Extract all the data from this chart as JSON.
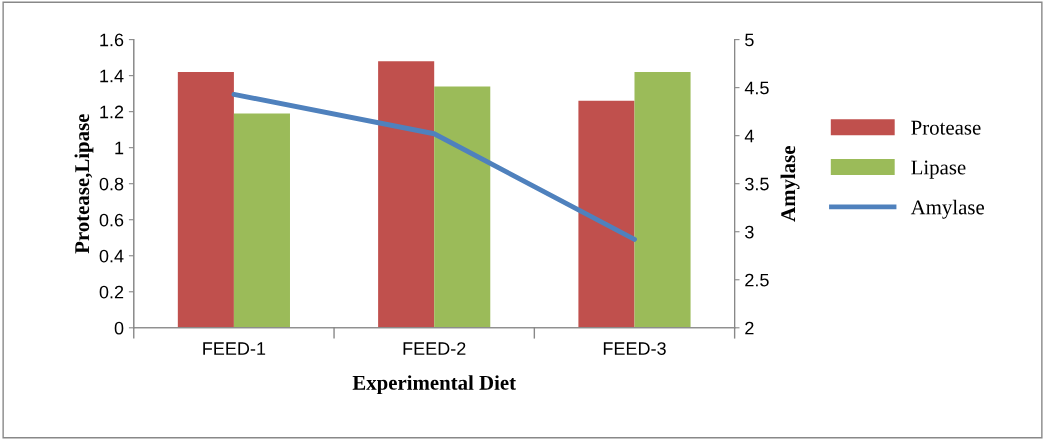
{
  "chart_data": {
    "type": "bar",
    "xlabel": "Experimental Diet",
    "ylabel": "Protease,Lipase",
    "y2label": "Amylase",
    "categories": [
      "FEED-1",
      "FEED-2",
      "FEED-3"
    ],
    "series": [
      {
        "name": "Protease",
        "color": "#c0504d",
        "values": [
          1.42,
          1.48,
          1.26
        ]
      },
      {
        "name": "Lipase",
        "color": "#9bbb59",
        "values": [
          1.19,
          1.34,
          1.42
        ]
      },
      {
        "name": "Amylase",
        "color": "#4f81bd",
        "type": "line",
        "axis": "y2",
        "values": [
          4.43,
          4.02,
          2.92
        ]
      }
    ],
    "ylim": [
      0,
      1.6
    ],
    "yticks": [
      0,
      0.2,
      0.4,
      0.6,
      0.8,
      1,
      1.2,
      1.4,
      1.6
    ],
    "y2lim": [
      2,
      5
    ],
    "y2ticks": [
      2,
      2.5,
      3,
      3.5,
      4,
      4.5,
      5
    ],
    "legend": "right",
    "grid": false,
    "marker": "none",
    "line_style": "solid"
  }
}
